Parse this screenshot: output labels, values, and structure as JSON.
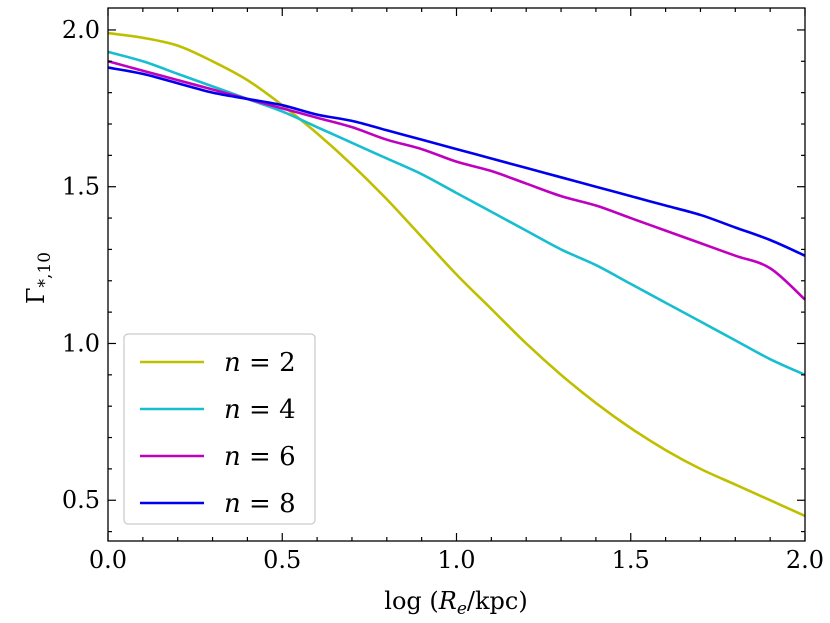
{
  "chart_data": {
    "type": "line",
    "title": "",
    "xlabel": "log (R_e/kpc)",
    "xlabel_parts": {
      "prefix": "log (",
      "var": "R",
      "sub": "e",
      "suffix": "/kpc)"
    },
    "ylabel": "Γ*,10",
    "ylabel_parts": {
      "main": "Γ",
      "sub": "*,10"
    },
    "xlim": [
      0.0,
      2.0
    ],
    "ylim": [
      0.37,
      2.07
    ],
    "xticks": [
      0.0,
      0.5,
      1.0,
      1.5,
      2.0
    ],
    "xtick_labels": [
      "0.0",
      "0.5",
      "1.0",
      "1.5",
      "2.0"
    ],
    "yticks": [
      0.5,
      1.0,
      1.5,
      2.0
    ],
    "ytick_labels": [
      "0.5",
      "1.0",
      "1.5",
      "2.0"
    ],
    "grid": false,
    "legend_position": "lower-left",
    "x": [
      0.0,
      0.1,
      0.2,
      0.3,
      0.4,
      0.5,
      0.6,
      0.7,
      0.8,
      0.9,
      1.0,
      1.1,
      1.2,
      1.3,
      1.4,
      1.5,
      1.6,
      1.7,
      1.8,
      1.9,
      2.0
    ],
    "series": [
      {
        "name": "n = 2",
        "label_var": "n",
        "label_rest": " = 2",
        "color": "#bfbf00",
        "values": [
          1.99,
          1.975,
          1.95,
          1.9,
          1.84,
          1.76,
          1.67,
          1.57,
          1.46,
          1.34,
          1.22,
          1.11,
          1.0,
          0.9,
          0.81,
          0.73,
          0.66,
          0.6,
          0.55,
          0.5,
          0.45
        ]
      },
      {
        "name": "n = 4",
        "label_var": "n",
        "label_rest": " = 4",
        "color": "#17becf",
        "values": [
          1.93,
          1.9,
          1.86,
          1.82,
          1.78,
          1.74,
          1.69,
          1.64,
          1.59,
          1.54,
          1.48,
          1.42,
          1.36,
          1.3,
          1.25,
          1.19,
          1.13,
          1.07,
          1.01,
          0.95,
          0.9
        ]
      },
      {
        "name": "n = 6",
        "label_var": "n",
        "label_rest": " = 6",
        "color": "#bf00bf",
        "values": [
          1.9,
          1.87,
          1.84,
          1.81,
          1.78,
          1.75,
          1.72,
          1.69,
          1.65,
          1.62,
          1.58,
          1.55,
          1.51,
          1.47,
          1.44,
          1.4,
          1.36,
          1.32,
          1.28,
          1.24,
          1.14
        ]
      },
      {
        "name": "n = 8",
        "label_var": "n",
        "label_rest": " = 8",
        "color": "#0000ee",
        "values": [
          1.88,
          1.86,
          1.83,
          1.8,
          1.78,
          1.76,
          1.73,
          1.71,
          1.68,
          1.65,
          1.62,
          1.59,
          1.56,
          1.53,
          1.5,
          1.47,
          1.44,
          1.41,
          1.37,
          1.33,
          1.28
        ]
      }
    ]
  }
}
